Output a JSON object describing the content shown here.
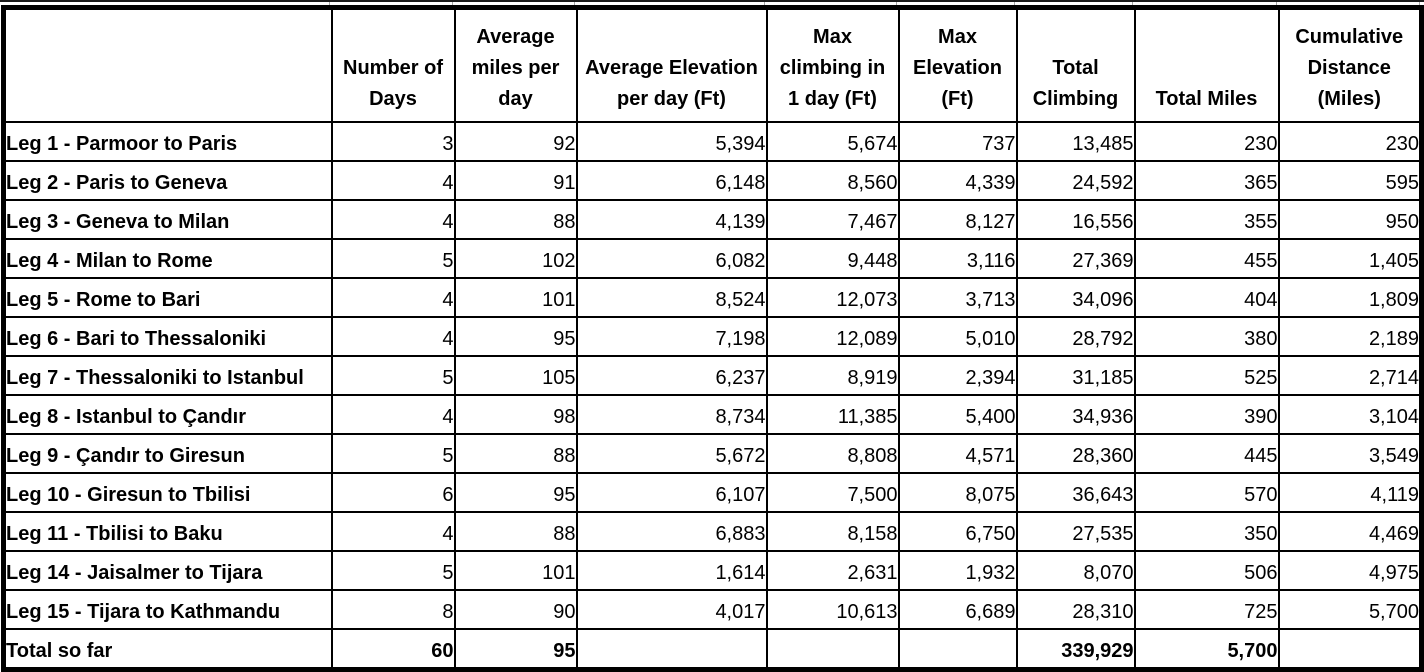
{
  "table": {
    "columns": [
      {
        "id": "leg",
        "header_lines": []
      },
      {
        "id": "number-of-days",
        "header_lines": [
          "Number of",
          "Days"
        ]
      },
      {
        "id": "average-miles-per-day",
        "header_lines": [
          "Average",
          "miles per",
          "day"
        ]
      },
      {
        "id": "average-elevation-per-day-ft",
        "header_lines": [
          "Average Elevation",
          "per day (Ft)"
        ]
      },
      {
        "id": "max-climbing-in-1-day-ft",
        "header_lines": [
          "Max",
          "climbing in",
          "1 day (Ft)"
        ]
      },
      {
        "id": "max-elevation-ft",
        "header_lines": [
          "Max",
          "Elevation",
          "(Ft)"
        ]
      },
      {
        "id": "total-climbing",
        "header_lines": [
          "Total",
          "Climbing"
        ]
      },
      {
        "id": "total-miles",
        "header_lines": [
          "Total Miles"
        ]
      },
      {
        "id": "cumulative-distance-miles",
        "header_lines": [
          "Cumulative",
          "Distance",
          "(Miles)"
        ]
      }
    ],
    "rows": [
      [
        "Leg 1 - Parmoor to Paris",
        "3",
        "92",
        "5,394",
        "5,674",
        "737",
        "13,485",
        "230",
        "230"
      ],
      [
        "Leg 2 - Paris to Geneva",
        "4",
        "91",
        "6,148",
        "8,560",
        "4,339",
        "24,592",
        "365",
        "595"
      ],
      [
        "Leg 3 - Geneva to Milan",
        "4",
        "88",
        "4,139",
        "7,467",
        "8,127",
        "16,556",
        "355",
        "950"
      ],
      [
        "Leg 4 - Milan to Rome",
        "5",
        "102",
        "6,082",
        "9,448",
        "3,116",
        "27,369",
        "455",
        "1,405"
      ],
      [
        "Leg 5 - Rome to Bari",
        "4",
        "101",
        "8,524",
        "12,073",
        "3,713",
        "34,096",
        "404",
        "1,809"
      ],
      [
        "Leg 6 - Bari to Thessaloniki",
        "4",
        "95",
        "7,198",
        "12,089",
        "5,010",
        "28,792",
        "380",
        "2,189"
      ],
      [
        "Leg 7 - Thessaloniki to Istanbul",
        "5",
        "105",
        "6,237",
        "8,919",
        "2,394",
        "31,185",
        "525",
        "2,714"
      ],
      [
        "Leg 8 - Istanbul to Çandır",
        "4",
        "98",
        "8,734",
        "11,385",
        "5,400",
        "34,936",
        "390",
        "3,104"
      ],
      [
        "Leg 9 - Çandır to Giresun",
        "5",
        "88",
        "5,672",
        "8,808",
        "4,571",
        "28,360",
        "445",
        "3,549"
      ],
      [
        "Leg 10 - Giresun to Tbilisi",
        "6",
        "95",
        "6,107",
        "7,500",
        "8,075",
        "36,643",
        "570",
        "4,119"
      ],
      [
        "Leg 11 - Tbilisi to Baku",
        "4",
        "88",
        "6,883",
        "8,158",
        "6,750",
        "27,535",
        "350",
        "4,469"
      ],
      [
        "Leg 14 - Jaisalmer to Tijara",
        "5",
        "101",
        "1,614",
        "2,631",
        "1,932",
        "8,070",
        "506",
        "4,975"
      ],
      [
        "Leg 15 - Tijara to Kathmandu",
        "8",
        "90",
        "4,017",
        "10,613",
        "6,689",
        "28,310",
        "725",
        "5,700"
      ]
    ],
    "total_row": [
      "Total so far",
      "60",
      "95",
      "",
      "",
      "",
      "339,929",
      "5,700",
      ""
    ]
  },
  "colors": {
    "border": "#000000",
    "text": "#000000",
    "background": "#ffffff",
    "gridline_stub": "#a6a6a6"
  }
}
